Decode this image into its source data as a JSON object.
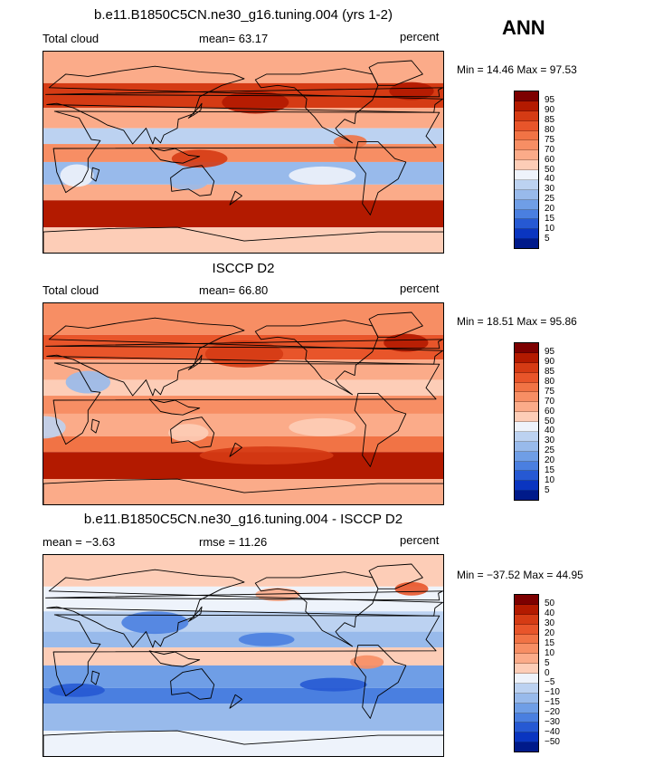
{
  "season": "ANN",
  "panels": [
    {
      "title": "b.e11.B1850C5CN.ne30_g16.tuning.004 (yrs 1-2)",
      "left_label": "Total cloud",
      "mean_label": "mean=  63.17",
      "units": "percent",
      "min_label": "Min =",
      "min_value": "14.46",
      "max_label": "Max =",
      "max_value": "97.53",
      "colorbar_labels": [
        "95",
        "90",
        "85",
        "80",
        "75",
        "70",
        "60",
        "50",
        "40",
        "30",
        "25",
        "20",
        "15",
        "10",
        "5"
      ]
    },
    {
      "title": "ISCCP D2",
      "left_label": "Total cloud",
      "mean_label": "mean=  66.80",
      "units": "percent",
      "min_label": "Min =",
      "min_value": "18.51",
      "max_label": "Max =",
      "max_value": "95.86",
      "colorbar_labels": [
        "95",
        "90",
        "85",
        "80",
        "75",
        "70",
        "60",
        "50",
        "40",
        "30",
        "25",
        "20",
        "15",
        "10",
        "5"
      ]
    },
    {
      "title": "b.e11.B1850C5CN.ne30_g16.tuning.004 - ISCCP D2",
      "left_label": "mean =  −3.63",
      "mean_label": "rmse =  11.26",
      "units": "percent",
      "min_label": "Min =",
      "min_value": "−37.52",
      "max_label": "Max =",
      "max_value": "44.95",
      "colorbar_labels": [
        "50",
        "40",
        "30",
        "20",
        "15",
        "10",
        "5",
        "0",
        "−5",
        "−10",
        "−15",
        "−20",
        "−30",
        "−40",
        "−50"
      ]
    }
  ],
  "colors": {
    "colorbar_16": [
      "#7d0000",
      "#b31a00",
      "#d53b14",
      "#e8552a",
      "#f17345",
      "#f78e64",
      "#fbab89",
      "#fdcdb7",
      "#eef3fb",
      "#bcd2f1",
      "#98baeb",
      "#6f9ee6",
      "#4a7fe0",
      "#2659d3",
      "#0a35c0",
      "#001a8a"
    ]
  }
}
